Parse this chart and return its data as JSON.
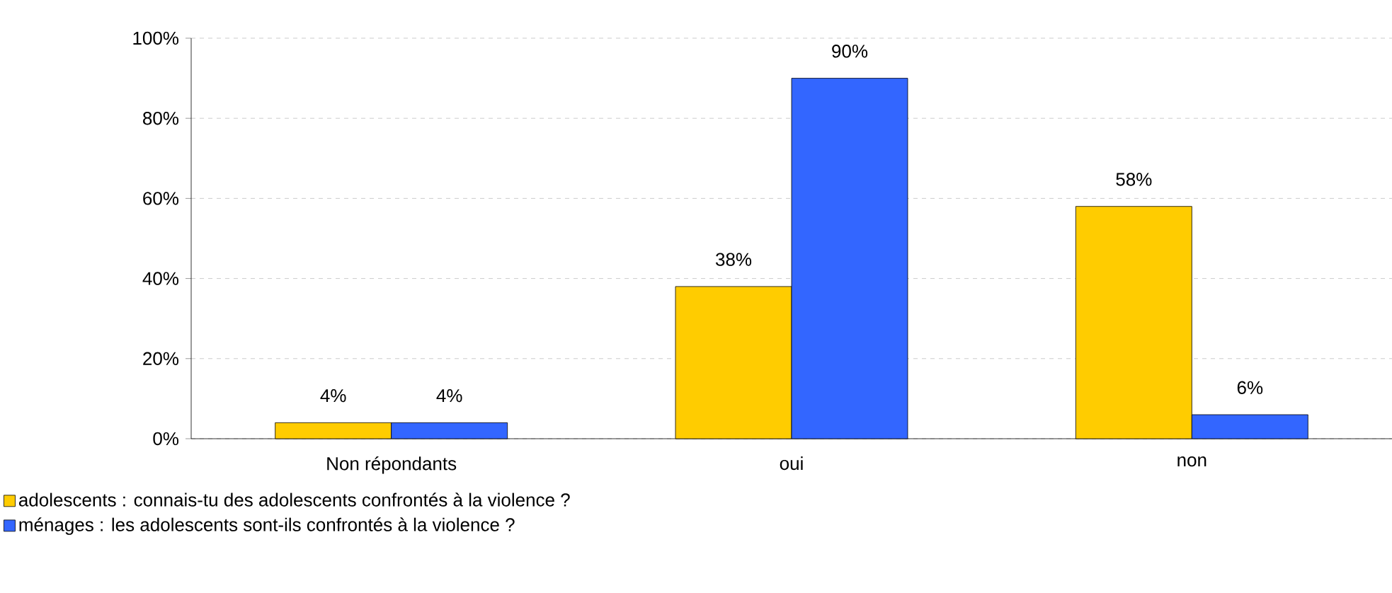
{
  "chart_data": {
    "type": "bar",
    "categories": [
      "Non répondants",
      "oui",
      "non"
    ],
    "series": [
      {
        "name": "adolescents : connais-tu des adolescents confrontés à la violence ?",
        "color": "#ffcc00",
        "values": [
          4,
          38,
          58
        ],
        "value_labels": [
          "4%",
          "38%",
          "58%"
        ]
      },
      {
        "name": "ménages : les adolescents sont-ils confrontés à la violence ?",
        "color": "#3366ff",
        "values": [
          4,
          90,
          6
        ],
        "value_labels": [
          "4%",
          "90%",
          "6%"
        ]
      }
    ],
    "ylim": [
      0,
      100
    ],
    "yticks": [
      {
        "value": 0,
        "label": "0%"
      },
      {
        "value": 20,
        "label": "20%"
      },
      {
        "value": 40,
        "label": "40%"
      },
      {
        "value": 60,
        "label": "60%"
      },
      {
        "value": 80,
        "label": "80%"
      },
      {
        "value": 100,
        "label": "100%"
      }
    ],
    "grid": "y",
    "legend": "bottom left"
  }
}
